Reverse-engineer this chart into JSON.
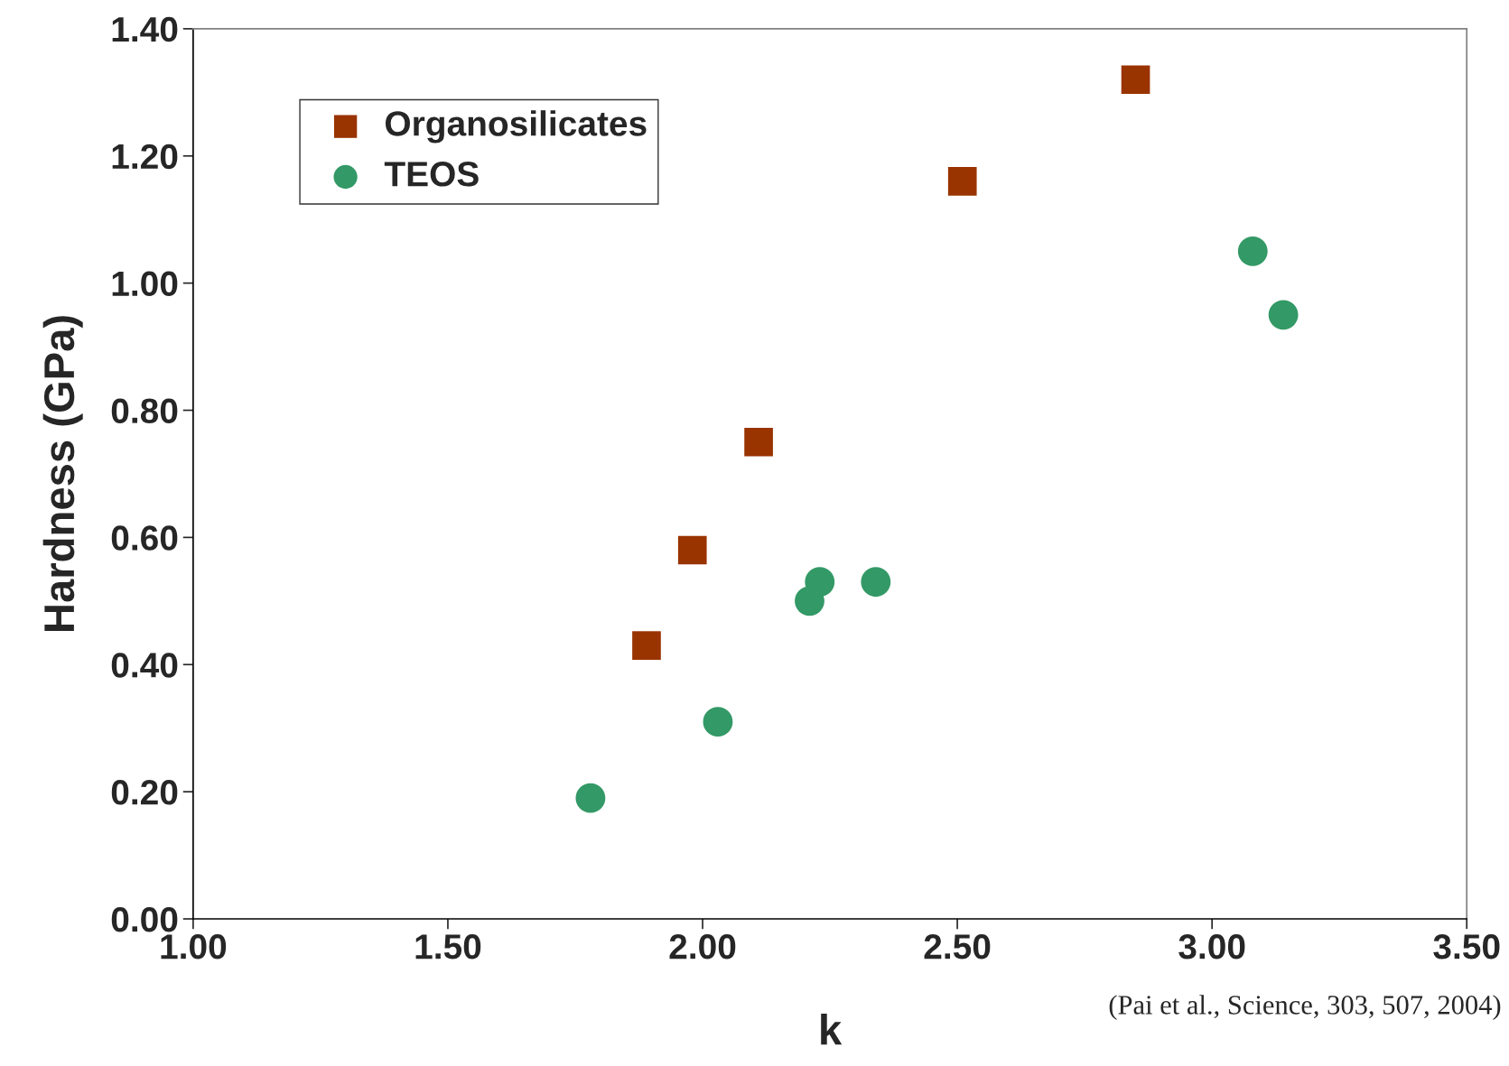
{
  "chart_data": {
    "type": "scatter",
    "xlabel": "k",
    "ylabel": "Hardness (GPa)",
    "xlim": [
      1.0,
      3.5
    ],
    "ylim": [
      0.0,
      1.4
    ],
    "xticks": [
      {
        "value": 1.0,
        "label": "1.00"
      },
      {
        "value": 1.5,
        "label": "1.50"
      },
      {
        "value": 2.0,
        "label": "2.00"
      },
      {
        "value": 2.5,
        "label": "2.50"
      },
      {
        "value": 3.0,
        "label": "3.00"
      },
      {
        "value": 3.5,
        "label": "3.50"
      }
    ],
    "yticks": [
      {
        "value": 0.0,
        "label": "0.00"
      },
      {
        "value": 0.2,
        "label": "0.20"
      },
      {
        "value": 0.4,
        "label": "0.40"
      },
      {
        "value": 0.6,
        "label": "0.60"
      },
      {
        "value": 0.8,
        "label": "0.80"
      },
      {
        "value": 1.0,
        "label": "1.00"
      },
      {
        "value": 1.2,
        "label": "1.20"
      },
      {
        "value": 1.4,
        "label": "1.40"
      }
    ],
    "grid": false,
    "legend": "top left",
    "series": [
      {
        "name": "Organosilicates",
        "color": "#993300",
        "marker": "square",
        "x": [
          1.89,
          1.98,
          2.11,
          2.51,
          2.85
        ],
        "values": [
          0.43,
          0.58,
          0.75,
          1.16,
          1.32
        ]
      },
      {
        "name": "TEOS",
        "color": "#339966",
        "marker": "circle",
        "x": [
          1.78,
          2.03,
          2.21,
          2.23,
          2.34,
          3.08,
          3.14
        ],
        "values": [
          0.19,
          0.31,
          0.5,
          0.53,
          0.53,
          1.05,
          0.95
        ]
      }
    ],
    "annotations": [
      "(Pai et al., Science, 303, 507, 2004)"
    ]
  }
}
